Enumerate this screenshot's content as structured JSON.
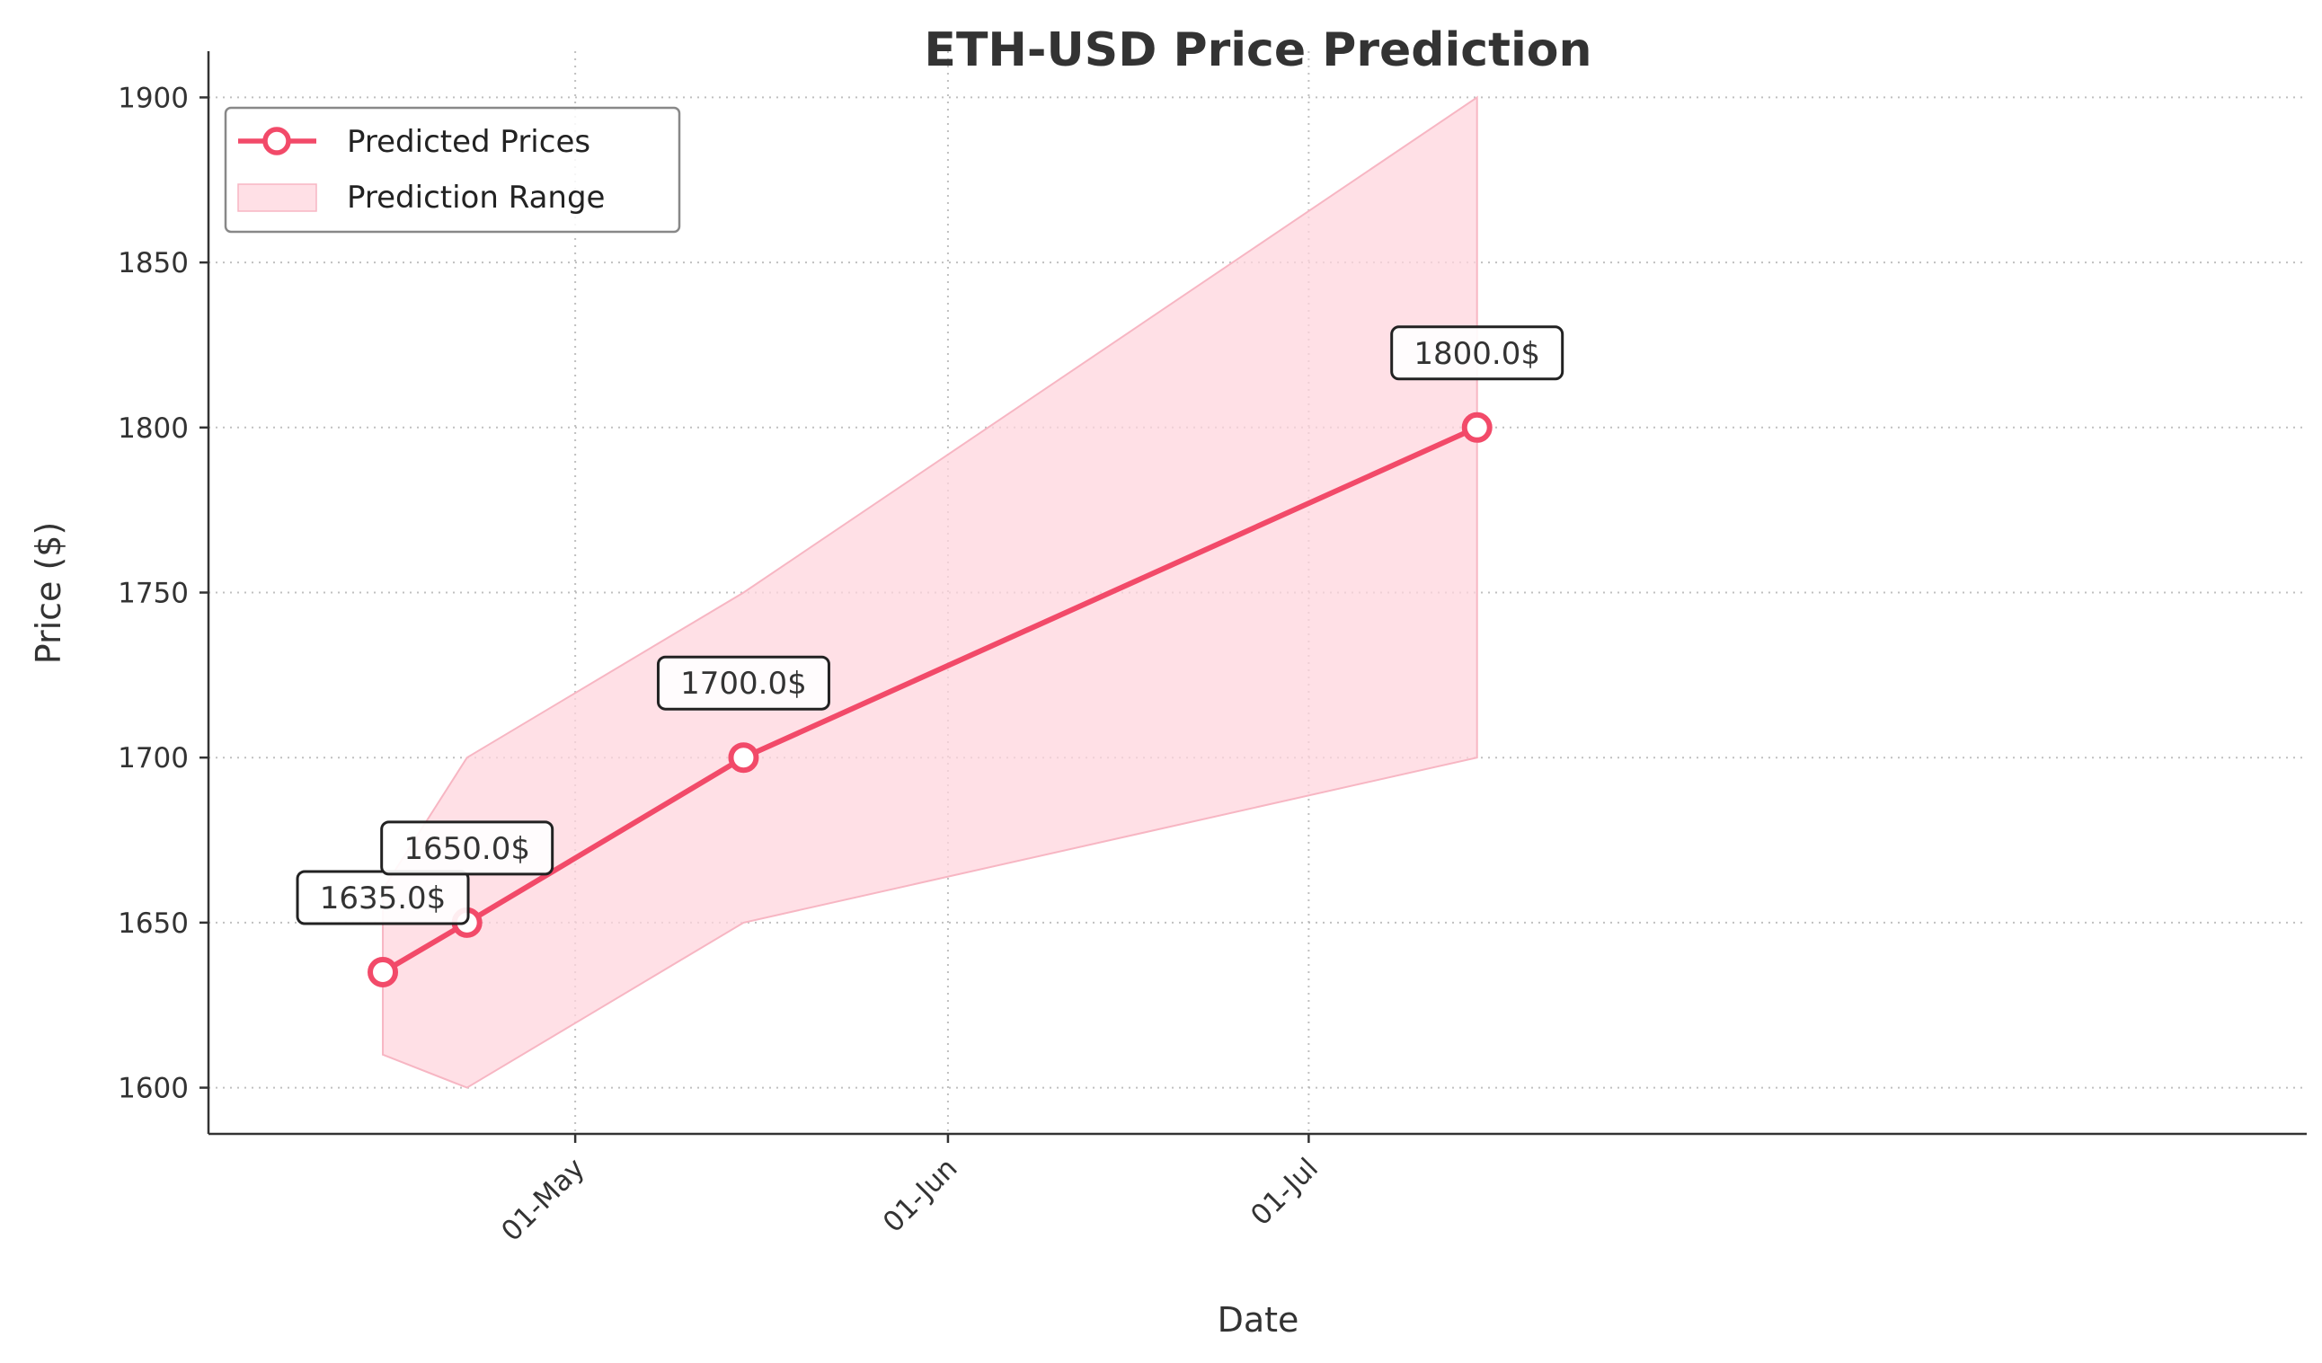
{
  "chart_data": {
    "type": "line",
    "title": "ETH-USD Price Prediction",
    "xlabel": "Date",
    "ylabel": "Price ($)",
    "ylim": [
      1586,
      1914
    ],
    "xlim_days": [
      -14.5,
      160
    ],
    "x_ticks": [
      {
        "label": "01-May",
        "day": 16
      },
      {
        "label": "01-Jun",
        "day": 47
      },
      {
        "label": "01-Jul",
        "day": 77
      }
    ],
    "y_ticks": [
      1600,
      1650,
      1700,
      1750,
      1800,
      1850,
      1900
    ],
    "grid": true,
    "legend_position": "top-left",
    "series": [
      {
        "name": "Predicted Prices",
        "color": "#f24a69",
        "points": [
          {
            "date": "15-Apr",
            "day": 0,
            "value": 1635.0,
            "label": "1635.0$"
          },
          {
            "date": "22-Apr",
            "day": 7,
            "value": 1650.0,
            "label": "1650.0$"
          },
          {
            "date": "15-May",
            "day": 30,
            "value": 1700.0,
            "label": "1700.0$"
          },
          {
            "date": "15-Jul",
            "day": 91,
            "value": 1800.0,
            "label": "1800.0$"
          }
        ]
      }
    ],
    "range": {
      "name": "Prediction Range",
      "color": "#ffd6de",
      "points": [
        {
          "day": 0,
          "low": 1610,
          "high": 1660
        },
        {
          "day": 7,
          "low": 1600,
          "high": 1700
        },
        {
          "day": 30,
          "low": 1650,
          "high": 1750
        },
        {
          "day": 91,
          "low": 1700,
          "high": 1900
        }
      ]
    }
  }
}
